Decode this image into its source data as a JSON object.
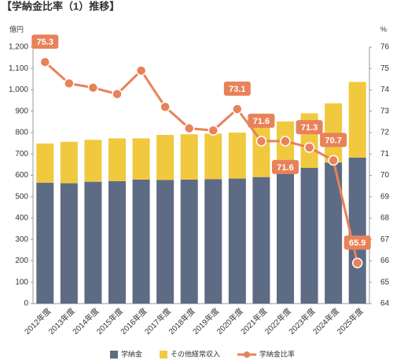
{
  "chart_data": {
    "type": "bar-line",
    "title": "【学納金比率（1）推移】",
    "y_label": "億円",
    "y2_label": "%",
    "categories": [
      "2012年度",
      "2013年度",
      "2014年度",
      "2015年度",
      "2016年度",
      "2017年度",
      "2018年度",
      "2019年度",
      "2020年度",
      "2021年度",
      "2022年度",
      "2023年度",
      "2024年度",
      "2025年度"
    ],
    "series": [
      {
        "name": "学納金",
        "type": "bar",
        "color": "#5d6b85",
        "values": [
          565,
          563,
          570,
          573,
          580,
          578,
          580,
          582,
          585,
          592,
          610,
          635,
          660,
          683
        ]
      },
      {
        "name": "その他経常収入",
        "type": "bar",
        "color": "#f1c93f",
        "values": [
          184,
          194,
          196,
          200,
          193,
          211,
          212,
          213,
          215,
          233,
          242,
          255,
          277,
          354
        ]
      },
      {
        "name": "学納金比率",
        "type": "line",
        "axis": "y2",
        "color": "#e8825a",
        "values": [
          75.3,
          74.3,
          74.1,
          73.8,
          74.9,
          73.2,
          72.2,
          72.1,
          73.1,
          71.6,
          71.6,
          71.3,
          70.7,
          65.9
        ],
        "value_labels": [
          "75.3",
          null,
          null,
          null,
          null,
          null,
          null,
          null,
          "73.1",
          "71.6",
          "71.6",
          "71.3",
          "70.7",
          "65.9"
        ]
      }
    ],
    "ylim": [
      0,
      1200
    ],
    "yticks": [
      0,
      100,
      200,
      300,
      400,
      500,
      600,
      700,
      800,
      900,
      {
        "value": 1000,
        "label": "1,000"
      },
      {
        "value": 1100,
        "label": "1,100"
      },
      {
        "value": 1200,
        "label": "1,200"
      }
    ],
    "y2lim": [
      64,
      76
    ],
    "y2ticks": [
      64,
      65,
      66,
      67,
      68,
      69,
      70,
      71,
      72,
      73,
      74,
      75,
      76
    ],
    "stacked": true,
    "grid": false
  }
}
